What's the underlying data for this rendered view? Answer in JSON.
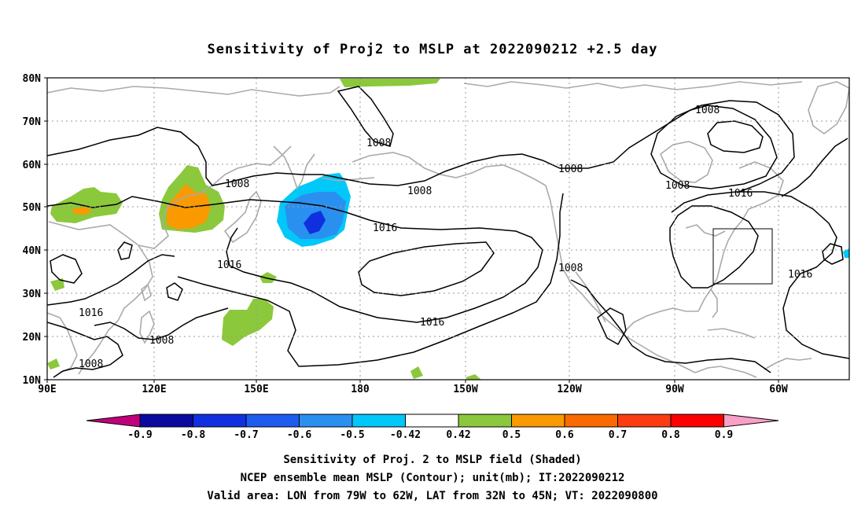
{
  "title": "Sensitivity of Proj2 to MSLP at 2022090212 +2.5 day",
  "map": {
    "lat_labels": [
      "80N",
      "70N",
      "60N",
      "50N",
      "40N",
      "30N",
      "20N",
      "10N"
    ],
    "lon_labels": [
      "90E",
      "120E",
      "150E",
      "180",
      "150W",
      "120W",
      "90W",
      "60W"
    ],
    "contour_labels": [
      "1008",
      "1008",
      "1008",
      "1008",
      "1008",
      "1008",
      "1008",
      "1008",
      "1016",
      "1016",
      "1016",
      "1016",
      "1016",
      "1016"
    ]
  },
  "colorbar": {
    "labels": [
      "-0.9",
      "-0.8",
      "-0.7",
      "-0.6",
      "-0.5",
      "-0.42",
      "0.42",
      "0.5",
      "0.6",
      "0.7",
      "0.8",
      "0.9"
    ],
    "colors": {
      "lt_-0.9": "#c0007a",
      "-0.9_-0.8": "#0a0aa0",
      "-0.8_-0.7": "#1030e0",
      "-0.7_-0.6": "#1e5cf0",
      "-0.6_-0.5": "#2a90f0",
      "-0.5_-0.42": "#00c8f8",
      "-0.42_0.42": "#ffffff",
      "0.42_0.5": "#8cc83c",
      "0.5_0.6": "#fa9a00",
      "0.6_0.7": "#fa6a00",
      "0.7_0.8": "#fa3c10",
      "0.8_0.9": "#fa0000",
      "gt_0.9": "#f8a0c8"
    }
  },
  "captions": {
    "line1": "Sensitivity of Proj. 2 to MSLP field (Shaded)",
    "line2": "NCEP ensemble mean MSLP (Contour); unit(mb); IT:2022090212",
    "line3": "Valid area: LON from 79W to 62W, LAT from 32N to 45N; VT: 2022090800"
  }
}
